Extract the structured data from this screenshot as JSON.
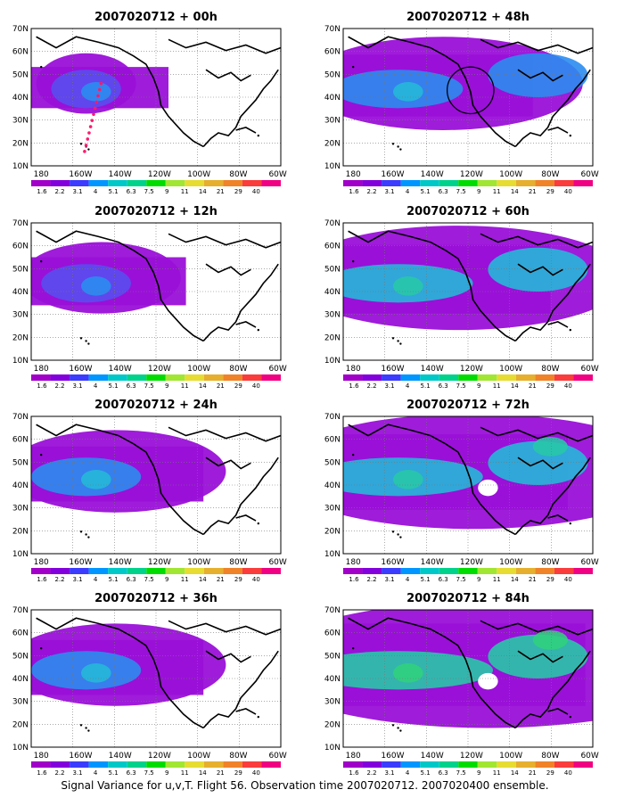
{
  "caption": "Signal Variance for u,v,T. Flight 56. Observation time 2007020712. 2007020400 ensemble.",
  "lat_labels": [
    "70N",
    "60N",
    "50N",
    "40N",
    "30N",
    "20N",
    "10N"
  ],
  "lon_labels": [
    "180",
    "160W",
    "140W",
    "120W",
    "100W",
    "80W",
    "60W"
  ],
  "colorbar": {
    "labels": [
      "1.6",
      "2.2",
      "3.1",
      "4",
      "5.1",
      "6.3",
      "7.5",
      "9",
      "11",
      "14",
      "21",
      "29",
      "40"
    ],
    "colors": [
      "#a000c8",
      "#8200dc",
      "#3c3cff",
      "#0096ff",
      "#00c8c8",
      "#00d28c",
      "#00dc00",
      "#a0e632",
      "#e6dc32",
      "#e6af2d",
      "#f08228",
      "#fa3c3c",
      "#f00082"
    ]
  },
  "panels": [
    {
      "title": "2007020712 + 00h",
      "level": 0,
      "flight_track": true,
      "circle": false
    },
    {
      "title": "2007020712 + 48h",
      "level": 3,
      "flight_track": false,
      "circle": true
    },
    {
      "title": "2007020712 + 12h",
      "level": 1,
      "flight_track": false,
      "circle": false
    },
    {
      "title": "2007020712 + 60h",
      "level": 4,
      "flight_track": false,
      "circle": false
    },
    {
      "title": "2007020712 + 24h",
      "level": 2,
      "flight_track": false,
      "circle": false
    },
    {
      "title": "2007020712 + 72h",
      "level": 5,
      "flight_track": false,
      "circle": false
    },
    {
      "title": "2007020712 + 36h",
      "level": 2,
      "flight_track": false,
      "circle": false
    },
    {
      "title": "2007020712 + 84h",
      "level": 6,
      "flight_track": false,
      "circle": false
    }
  ]
}
